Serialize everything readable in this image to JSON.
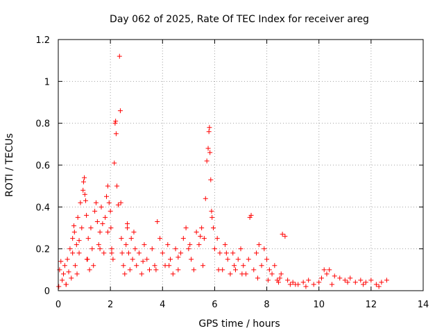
{
  "chart_data": {
    "type": "scatter",
    "title": "Day 062 of 2025, Rate Of TEC Index for receiver areg",
    "xlabel": "GPS time / hours",
    "ylabel": "ROTI / TECUs",
    "xlim": [
      0,
      14
    ],
    "ylim": [
      0,
      1.2
    ],
    "xticks": [
      0,
      2,
      4,
      6,
      8,
      10,
      12,
      14
    ],
    "yticks": [
      0,
      0.2,
      0.4,
      0.6,
      0.8,
      1,
      1.2
    ],
    "xtick_labels": [
      "0",
      "2",
      "4",
      "6",
      "8",
      "10",
      "12",
      "14"
    ],
    "ytick_labels": [
      "0",
      "0.2",
      "0.4",
      "0.6",
      "0.8",
      "1",
      "1.2"
    ],
    "grid": true,
    "marker": "plus",
    "series_color": "#ff0000",
    "series": [
      {
        "name": "ROTI",
        "x": [
          0.02,
          0.05,
          0.1,
          0.15,
          0.2,
          0.25,
          0.3,
          0.35,
          0.4,
          0.45,
          0.5,
          0.55,
          0.6,
          0.62,
          0.65,
          0.7,
          0.72,
          0.75,
          0.8,
          0.85,
          0.9,
          0.95,
          0.97,
          1.0,
          1.02,
          1.05,
          1.08,
          1.1,
          1.15,
          1.2,
          1.25,
          1.3,
          1.35,
          1.4,
          1.45,
          1.5,
          1.55,
          1.6,
          1.65,
          1.7,
          1.75,
          1.8,
          1.85,
          1.9,
          1.95,
          2.0,
          2.02,
          2.05,
          2.1,
          2.15,
          2.18,
          2.2,
          2.22,
          2.25,
          2.3,
          2.35,
          2.38,
          2.4,
          2.42,
          2.45,
          2.5,
          2.55,
          2.6,
          2.65,
          2.7,
          2.75,
          2.8,
          2.85,
          2.9,
          2.95,
          3.0,
          3.1,
          3.2,
          3.3,
          3.4,
          3.5,
          3.6,
          3.7,
          3.8,
          3.9,
          4.0,
          4.1,
          4.2,
          4.3,
          4.4,
          4.5,
          4.6,
          4.7,
          4.8,
          4.9,
          5.0,
          5.1,
          5.2,
          5.3,
          5.4,
          5.5,
          5.6,
          5.65,
          5.7,
          5.75,
          5.78,
          5.8,
          5.82,
          5.85,
          5.88,
          5.9,
          5.95,
          6.0,
          6.1,
          6.2,
          6.3,
          6.4,
          6.5,
          6.6,
          6.7,
          6.8,
          6.9,
          7.0,
          7.1,
          7.2,
          7.3,
          7.35,
          7.4,
          7.5,
          7.6,
          7.7,
          7.8,
          7.9,
          8.0,
          8.1,
          8.2,
          8.3,
          8.4,
          8.5,
          8.55,
          8.6,
          8.7,
          8.8,
          8.9,
          9.0,
          9.2,
          9.4,
          9.6,
          9.8,
          10.0,
          10.1,
          10.2,
          10.3,
          10.4,
          10.6,
          10.8,
          11.0,
          11.2,
          11.4,
          11.6,
          11.8,
          12.0,
          12.2,
          12.4,
          12.6,
          0.3,
          0.55,
          0.8,
          1.12,
          1.6,
          1.9,
          2.05,
          2.65,
          3.25,
          3.75,
          4.25,
          4.6,
          5.05,
          5.45,
          5.55,
          6.15,
          6.45,
          6.75,
          7.05,
          7.65,
          8.05,
          8.45,
          9.1,
          9.5,
          10.5,
          11.1,
          11.7,
          12.3
        ],
        "y": [
          0.02,
          0.1,
          0.14,
          0.05,
          0.08,
          0.12,
          0.03,
          0.15,
          0.09,
          0.2,
          0.06,
          0.25,
          0.31,
          0.28,
          0.12,
          0.22,
          0.08,
          0.35,
          0.18,
          0.42,
          0.3,
          0.48,
          0.52,
          0.54,
          0.46,
          0.43,
          0.36,
          0.15,
          0.25,
          0.1,
          0.3,
          0.2,
          0.12,
          0.38,
          0.42,
          0.33,
          0.22,
          0.28,
          0.4,
          0.32,
          0.18,
          0.35,
          0.45,
          0.5,
          0.42,
          0.38,
          0.3,
          0.2,
          0.15,
          0.61,
          0.8,
          0.81,
          0.75,
          0.5,
          0.41,
          1.12,
          0.86,
          0.42,
          0.25,
          0.18,
          0.12,
          0.08,
          0.22,
          0.3,
          0.18,
          0.1,
          0.25,
          0.15,
          0.28,
          0.2,
          0.12,
          0.18,
          0.08,
          0.22,
          0.15,
          0.1,
          0.2,
          0.12,
          0.33,
          0.25,
          0.18,
          0.12,
          0.22,
          0.15,
          0.08,
          0.2,
          0.1,
          0.18,
          0.25,
          0.3,
          0.2,
          0.15,
          0.1,
          0.28,
          0.22,
          0.3,
          0.25,
          0.44,
          0.62,
          0.68,
          0.76,
          0.78,
          0.66,
          0.53,
          0.38,
          0.35,
          0.3,
          0.2,
          0.25,
          0.18,
          0.1,
          0.22,
          0.15,
          0.08,
          0.18,
          0.1,
          0.15,
          0.2,
          0.12,
          0.08,
          0.15,
          0.35,
          0.36,
          0.1,
          0.18,
          0.22,
          0.12,
          0.2,
          0.15,
          0.1,
          0.08,
          0.12,
          0.05,
          0.06,
          0.08,
          0.27,
          0.26,
          0.05,
          0.03,
          0.04,
          0.03,
          0.04,
          0.05,
          0.03,
          0.04,
          0.06,
          0.1,
          0.08,
          0.1,
          0.07,
          0.06,
          0.05,
          0.06,
          0.04,
          0.05,
          0.04,
          0.05,
          0.03,
          0.04,
          0.05,
          0.03,
          0.18,
          0.24,
          0.15,
          0.2,
          0.28,
          0.18,
          0.32,
          0.14,
          0.1,
          0.12,
          0.16,
          0.22,
          0.26,
          0.12,
          0.1,
          0.18,
          0.12,
          0.08,
          0.06,
          0.05,
          0.04,
          0.03,
          0.02,
          0.03,
          0.04,
          0.03,
          0.02
        ]
      }
    ]
  }
}
